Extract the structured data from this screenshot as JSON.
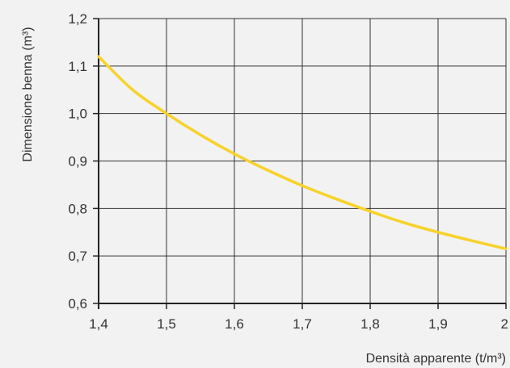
{
  "chart_data": {
    "type": "line",
    "xlabel": "Densità apparente (t/m³)",
    "ylabel": "Dimensione benna (m³)",
    "xlim": [
      1.4,
      2.0
    ],
    "ylim": [
      0.6,
      1.2
    ],
    "x_ticks": [
      1.4,
      1.5,
      1.6,
      1.7,
      1.8,
      1.9,
      2.0
    ],
    "y_ticks": [
      0.6,
      0.7,
      0.8,
      0.9,
      1.0,
      1.1,
      1.2
    ],
    "x_tick_labels": [
      "1,4",
      "1,5",
      "1,6",
      "1,7",
      "1,8",
      "1,9",
      "2"
    ],
    "y_tick_labels": [
      "0,6",
      "0,7",
      "0,8",
      "0,9",
      "1,0",
      "1,1",
      "1,2"
    ],
    "grid": true,
    "series": [
      {
        "color": "#f7d22a",
        "x": [
          1.4,
          1.45,
          1.5,
          1.55,
          1.6,
          1.65,
          1.7,
          1.75,
          1.8,
          1.85,
          1.9,
          1.95,
          2.0
        ],
        "y": [
          1.12,
          1.05,
          1.0,
          0.955,
          0.915,
          0.88,
          0.848,
          0.82,
          0.794,
          0.77,
          0.75,
          0.732,
          0.715
        ]
      }
    ],
    "colors": {
      "background": "#f2f2f2",
      "grid": "#333333",
      "axis": "#222222",
      "text": "#333333"
    }
  }
}
